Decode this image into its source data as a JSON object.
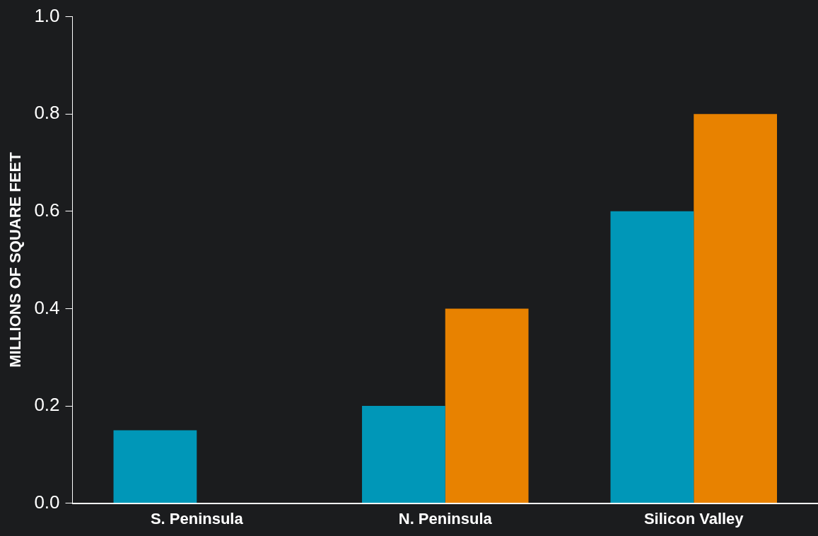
{
  "chart_data": {
    "type": "bar",
    "ylabel": "MILLIONS OF SQUARE FEET",
    "categories": [
      "S. Peninsula",
      "N. Peninsula",
      "Silicon Valley"
    ],
    "series": [
      {
        "color": "#0097b8",
        "values": [
          0.15,
          0.2,
          0.6
        ]
      },
      {
        "color": "#e88200",
        "values": [
          null,
          0.4,
          0.8
        ]
      }
    ],
    "ylim": [
      0,
      1.0
    ],
    "yticks": [
      {
        "value": 0,
        "label": "0.0"
      },
      {
        "value": 0.2,
        "label": "0.2"
      },
      {
        "value": 0.4,
        "label": "0.4"
      },
      {
        "value": 0.6,
        "label": "0.6"
      },
      {
        "value": 0.8,
        "label": "0.8"
      },
      {
        "value": 1.0,
        "label": "1.0"
      }
    ],
    "grid": false,
    "legend": false
  }
}
